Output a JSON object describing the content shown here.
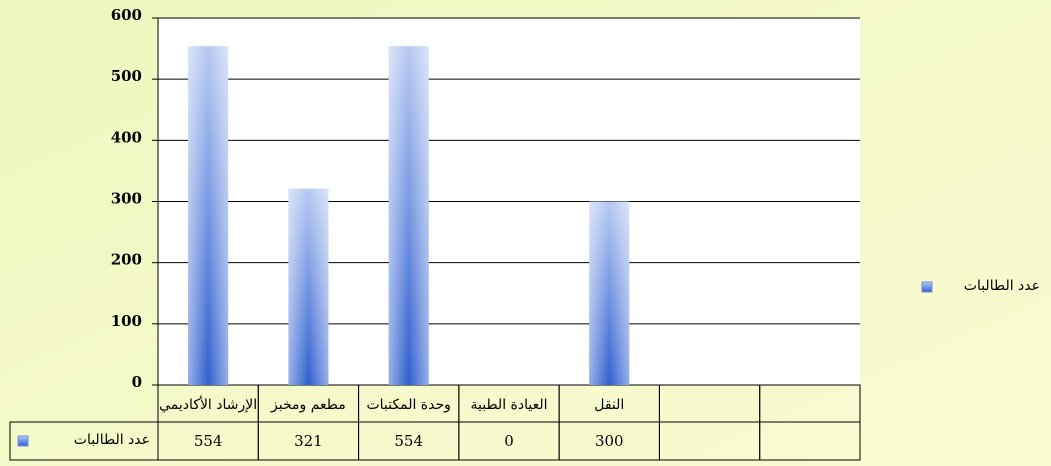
{
  "chart_data": {
    "type": "bar",
    "categories": [
      "الإرشاد الأكاديمي",
      "مطعم ومخبز",
      "وحدة المكتبات",
      "العيادة الطبية",
      "النقل",
      null,
      null
    ],
    "series": [
      {
        "name": "عدد الطالبات",
        "color": "#4a78d8",
        "values": [
          554,
          321,
          554,
          0,
          300,
          null,
          null
        ]
      }
    ],
    "ylim": [
      0,
      600
    ],
    "yticks": [
      0,
      100,
      200,
      300,
      400,
      500,
      600
    ],
    "grid": true,
    "legend": "right",
    "data_table": true
  }
}
